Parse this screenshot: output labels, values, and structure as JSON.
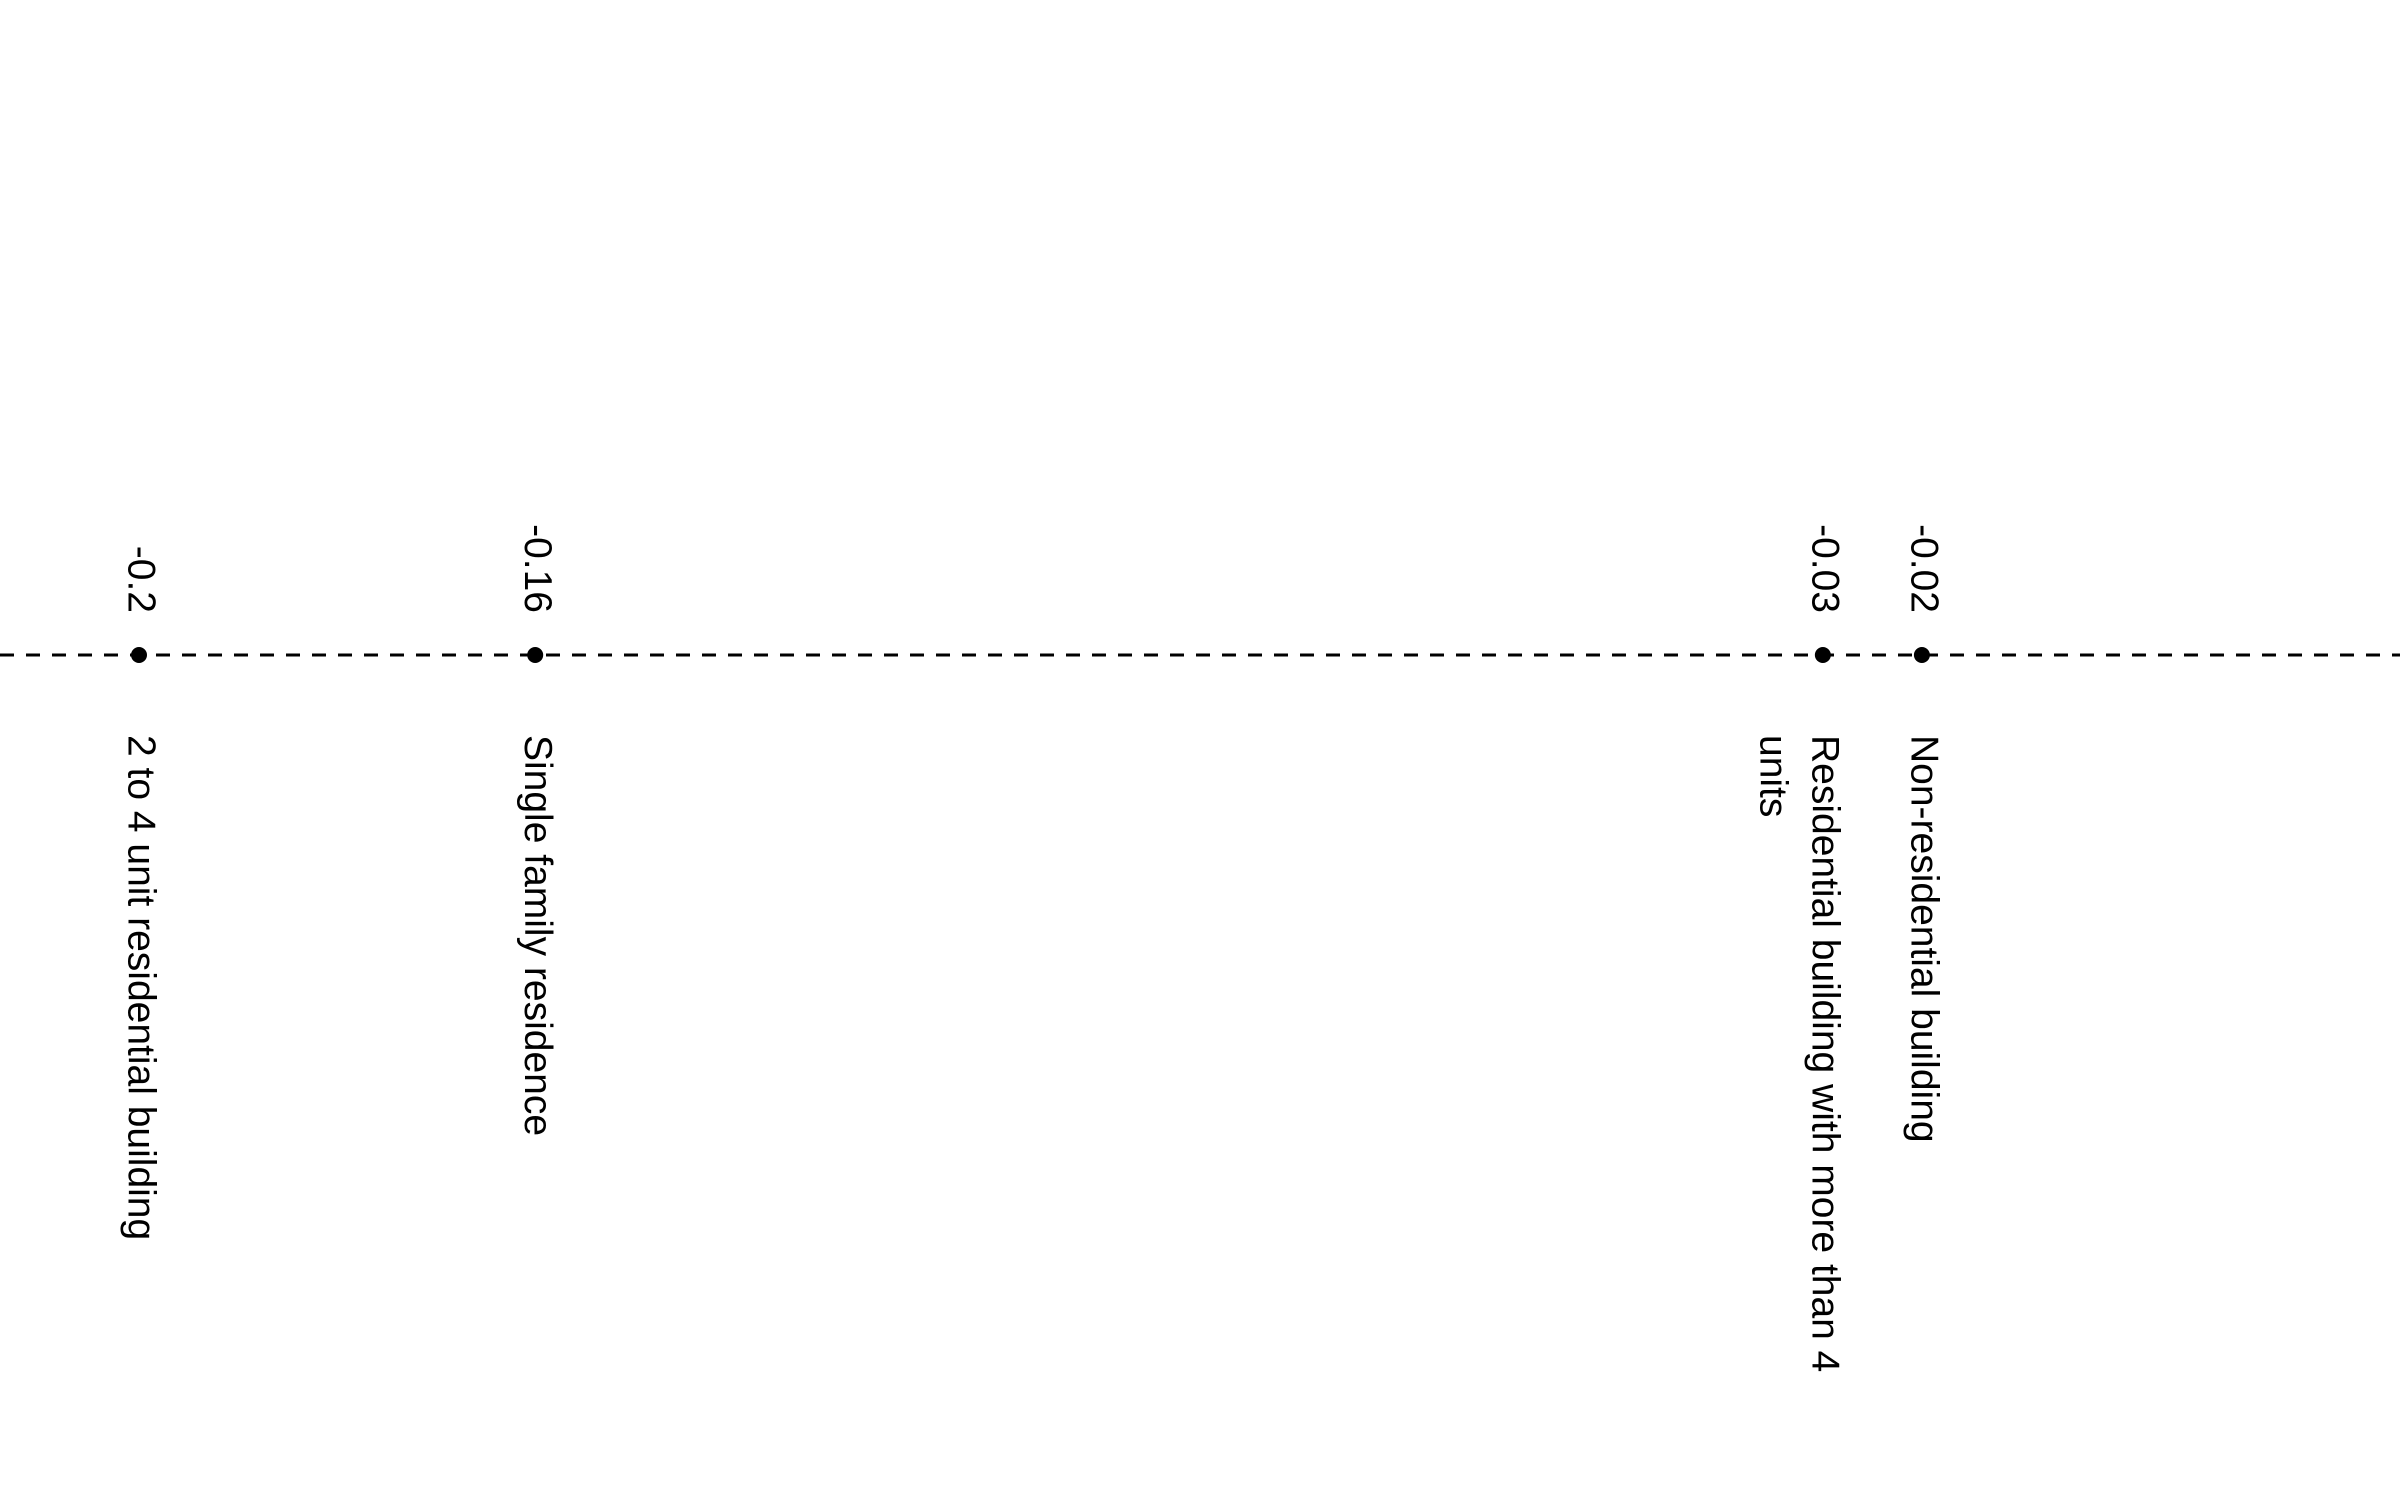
{
  "chart_data": {
    "type": "scatter",
    "orientation": "horizontal-dot-line",
    "grid": false,
    "legend": "none",
    "title": "",
    "xlabel": "",
    "ylabel": "",
    "points": [
      {
        "category": "2 to 4 unit residential building",
        "category_lines": [
          "2 to 4 unit residential building"
        ],
        "value": -0.2,
        "value_label": "-0.2"
      },
      {
        "category": "Single family residence",
        "category_lines": [
          "Single family residence"
        ],
        "value": -0.16,
        "value_label": "-0.16"
      },
      {
        "category": "Residential building with more than 4 units",
        "category_lines": [
          "Residential building with more than 4",
          "units"
        ],
        "value": -0.03,
        "value_label": "-0.03"
      },
      {
        "category": "Non-residential building",
        "category_lines": [
          "Non-residential building"
        ],
        "value": -0.02,
        "value_label": "-0.02"
      }
    ],
    "colors": {
      "line": "#000000",
      "point": "#000000",
      "text": "#000000"
    }
  }
}
